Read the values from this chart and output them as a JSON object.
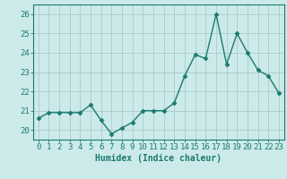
{
  "x": [
    0,
    1,
    2,
    3,
    4,
    5,
    6,
    7,
    8,
    9,
    10,
    11,
    12,
    13,
    14,
    15,
    16,
    17,
    18,
    19,
    20,
    21,
    22,
    23
  ],
  "y": [
    20.6,
    20.9,
    20.9,
    20.9,
    20.9,
    21.3,
    20.5,
    19.8,
    20.1,
    20.4,
    21.0,
    21.0,
    21.0,
    21.4,
    22.8,
    23.9,
    23.7,
    26.0,
    23.4,
    25.0,
    24.0,
    23.1,
    22.8,
    21.9
  ],
  "line_color": "#1a7a6e",
  "marker": "D",
  "markersize": 2.5,
  "linewidth": 1.0,
  "bg_color": "#cceaea",
  "grid_color": "#aacccc",
  "xlabel": "Humidex (Indice chaleur)",
  "xlim": [
    -0.5,
    23.5
  ],
  "ylim": [
    19.5,
    26.5
  ],
  "yticks": [
    20,
    21,
    22,
    23,
    24,
    25,
    26
  ],
  "xticks": [
    0,
    1,
    2,
    3,
    4,
    5,
    6,
    7,
    8,
    9,
    10,
    11,
    12,
    13,
    14,
    15,
    16,
    17,
    18,
    19,
    20,
    21,
    22,
    23
  ],
  "axis_color": "#1a7a6e",
  "label_fontsize": 7,
  "tick_fontsize": 6.5
}
